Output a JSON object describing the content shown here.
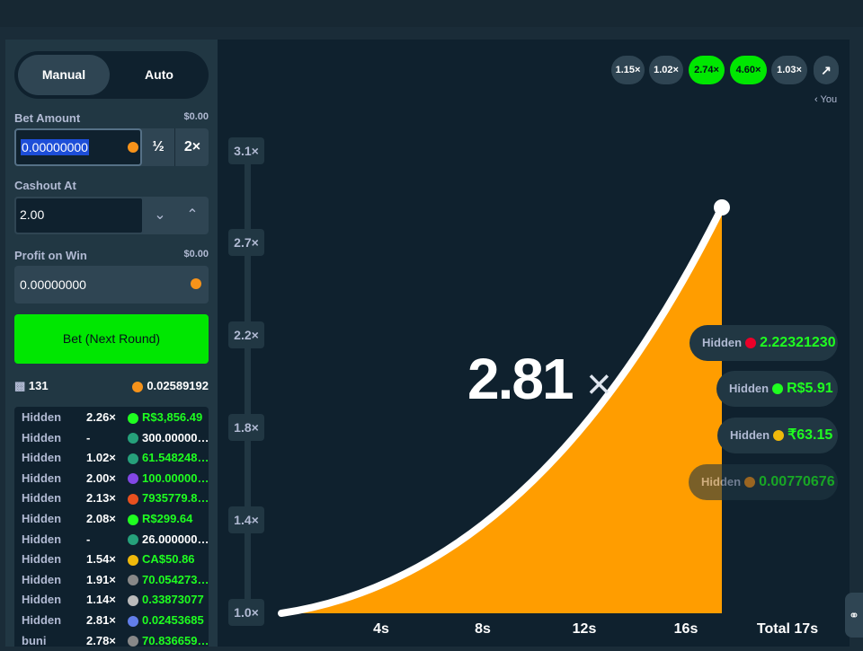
{
  "tabs": [
    "Manual",
    "Auto"
  ],
  "bet_amount": {
    "label": "Bet Amount",
    "usd": "$0.00",
    "value": "0.00000000",
    "half": "½",
    "double": "2×"
  },
  "cashout": {
    "label": "Cashout At",
    "value": "2.00"
  },
  "profit": {
    "label": "Profit on Win",
    "usd": "$0.00",
    "value": "0.00000000"
  },
  "bet_button": "Bet (Next Round)",
  "stats": {
    "players": "131",
    "total": "0.02589192"
  },
  "players": [
    {
      "name": "Hidden",
      "mult": "2.26×",
      "amount": "R$3,856.49"
    },
    {
      "name": "Hidden",
      "mult": "-",
      "amount": "300.00000…"
    },
    {
      "name": "Hidden",
      "mult": "1.02×",
      "amount": "61.548248…"
    },
    {
      "name": "Hidden",
      "mult": "2.00×",
      "amount": "100.00000…"
    },
    {
      "name": "Hidden",
      "mult": "2.13×",
      "amount": "7935779.8…"
    },
    {
      "name": "Hidden",
      "mult": "2.08×",
      "amount": "R$299.64"
    },
    {
      "name": "Hidden",
      "mult": "-",
      "amount": "26.000000…"
    },
    {
      "name": "Hidden",
      "mult": "1.54×",
      "amount": "CA$50.86"
    },
    {
      "name": "Hidden",
      "mult": "1.91×",
      "amount": "70.054273…"
    },
    {
      "name": "Hidden",
      "mult": "1.14×",
      "amount": "0.33873077"
    },
    {
      "name": "Hidden",
      "mult": "2.81×",
      "amount": "0.02453685"
    },
    {
      "name": "buni",
      "mult": "2.78×",
      "amount": "70.836659…"
    }
  ],
  "history": [
    "1.15×",
    "1.02×",
    "2.74×",
    "4.60×",
    "1.03×"
  ],
  "you": "You",
  "multiplier": "2.81",
  "multiplier_sign": "×",
  "y_labels": [
    "3.1×",
    "2.7×",
    "2.2×",
    "1.8×",
    "1.4×",
    "1.0×"
  ],
  "x_labels": [
    "4s",
    "8s",
    "12s",
    "16s"
  ],
  "total": "Total 17s",
  "cashouts": [
    {
      "name": "Hidden",
      "amount": "2.22321230"
    },
    {
      "name": "Hidden",
      "amount": "R$5.91"
    },
    {
      "name": "Hidden",
      "amount": "₹63.15"
    },
    {
      "name": "Hidden",
      "amount": "0.00770676"
    }
  ]
}
